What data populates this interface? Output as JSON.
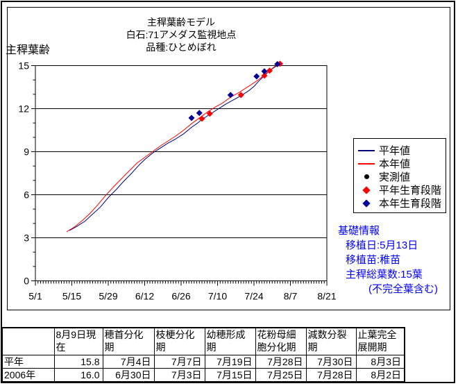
{
  "chart_data": {
    "type": "line",
    "title_lines": [
      "主稈葉齢モデル",
      "白石:71アメダス監視地点",
      "品種:ひとめぼれ"
    ],
    "ylabel": "主稈葉齢",
    "xlabel": "",
    "ylim": [
      0,
      15
    ],
    "y_major_ticks": [
      0,
      3,
      6,
      9,
      12,
      15
    ],
    "y_minor_tick_step": 1,
    "grid": "horizontal-major",
    "x_tick_labels": [
      "5/1",
      "5/15",
      "5/29",
      "6/12",
      "6/26",
      "7/10",
      "7/24",
      "8/7",
      "8/21"
    ],
    "x_range_days": 112,
    "x_major_tick_every_days": 14,
    "x_minor_tick_every_days": 1,
    "x_day_origin": "5/1",
    "legend_position": "right",
    "series": [
      {
        "name": "平年値",
        "color": "#000080",
        "style": "line",
        "points": [
          [
            13,
            3.5
          ],
          [
            16,
            3.8
          ],
          [
            19,
            4.15
          ],
          [
            22,
            4.65
          ],
          [
            25,
            5.15
          ],
          [
            28,
            5.8
          ],
          [
            31,
            6.35
          ],
          [
            34,
            6.95
          ],
          [
            37,
            7.5
          ],
          [
            40,
            8.1
          ],
          [
            42,
            8.45
          ],
          [
            45,
            8.9
          ],
          [
            48,
            9.25
          ],
          [
            51,
            9.6
          ],
          [
            54,
            9.9
          ],
          [
            57,
            10.25
          ],
          [
            60,
            10.7
          ],
          [
            62,
            10.95
          ],
          [
            64,
            11.25
          ],
          [
            67,
            11.6
          ],
          [
            70,
            11.95
          ],
          [
            73,
            12.3
          ],
          [
            76,
            12.6
          ],
          [
            79,
            12.9
          ],
          [
            82,
            13.25
          ],
          [
            84,
            13.55
          ],
          [
            86,
            13.95
          ],
          [
            88,
            14.3
          ],
          [
            90,
            14.65
          ],
          [
            92,
            14.9
          ],
          [
            94,
            15.1
          ],
          [
            95,
            15.17
          ]
        ]
      },
      {
        "name": "本年値",
        "color": "#ff0000",
        "style": "line",
        "points": [
          [
            12,
            3.42
          ],
          [
            15,
            3.75
          ],
          [
            18,
            4.2
          ],
          [
            21,
            4.7
          ],
          [
            24,
            5.3
          ],
          [
            27,
            5.95
          ],
          [
            30,
            6.55
          ],
          [
            33,
            7.1
          ],
          [
            36,
            7.65
          ],
          [
            39,
            8.2
          ],
          [
            42,
            8.6
          ],
          [
            45,
            9.0
          ],
          [
            48,
            9.4
          ],
          [
            51,
            9.75
          ],
          [
            54,
            10.1
          ],
          [
            57,
            10.5
          ],
          [
            60,
            10.95
          ],
          [
            63,
            11.35
          ],
          [
            66,
            11.75
          ],
          [
            69,
            12.1
          ],
          [
            72,
            12.4
          ],
          [
            75,
            12.8
          ],
          [
            78,
            13.1
          ],
          [
            81,
            13.45
          ],
          [
            84,
            13.8
          ],
          [
            86,
            14.05
          ],
          [
            88,
            14.35
          ],
          [
            90,
            14.65
          ],
          [
            91,
            14.8
          ],
          [
            93,
            15.08
          ]
        ]
      },
      {
        "name": "実測値",
        "color": "#000000",
        "style": "dot",
        "points": []
      }
    ],
    "stage_markers": [
      {
        "name": "平年生育段階",
        "color": "#ff0000",
        "shape": "diamond",
        "points": [
          {
            "date": "7月4日",
            "day": 64,
            "value": 11.3
          },
          {
            "date": "7月7日",
            "day": 67,
            "value": 11.65
          },
          {
            "date": "7月19日",
            "day": 79,
            "value": 12.95
          },
          {
            "date": "7月28日",
            "day": 88,
            "value": 14.3
          },
          {
            "date": "7月30日",
            "day": 90,
            "value": 14.65
          },
          {
            "date": "8月3日",
            "day": 94,
            "value": 15.13
          }
        ]
      },
      {
        "name": "本年生育段階",
        "color": "#000099",
        "shape": "diamond",
        "points": [
          {
            "date": "6月30日",
            "day": 60,
            "value": 11.35
          },
          {
            "date": "7月3日",
            "day": 63,
            "value": 11.7
          },
          {
            "date": "7月15日",
            "day": 75,
            "value": 12.95
          },
          {
            "date": "7月25日",
            "day": 85,
            "value": 14.25
          },
          {
            "date": "7月28日",
            "day": 88,
            "value": 14.6
          },
          {
            "date": "8月2日",
            "day": 93,
            "value": 15.1
          }
        ]
      }
    ]
  },
  "legend": {
    "items": [
      {
        "label": "平年値",
        "marker": "line",
        "color": "#000080"
      },
      {
        "label": "本年値",
        "marker": "line",
        "color": "#ff0000"
      },
      {
        "label": "実測値",
        "marker": "dot",
        "color": "#000000"
      },
      {
        "label": "平年生育段階",
        "marker": "diamond",
        "color": "#ff0000"
      },
      {
        "label": "本年生育段階",
        "marker": "diamond",
        "color": "#000099"
      }
    ]
  },
  "info_box": {
    "color": "#0000ff",
    "title": "基礎情報",
    "lines": [
      "移植日:5月13日",
      "移植苗:稚苗",
      "主稈総葉数:15葉",
      "(不完全葉含む)"
    ]
  },
  "table": {
    "headers": [
      "",
      "8月9日現在",
      "穂首分化期",
      "枝梗分化期",
      "幼穂形成期",
      "花粉母細胞分化期",
      "減数分裂期",
      "止葉完全展開期"
    ],
    "rows": [
      {
        "label": "平年",
        "values": [
          "15.8",
          "7月4日",
          "7月7日",
          "7月19日",
          "7月28日",
          "7月30日",
          "8月3日"
        ]
      },
      {
        "label": "2006年",
        "values": [
          "16.0",
          "6月30日",
          "7月3日",
          "7月15日",
          "7月25日",
          "7月28日",
          "8月2日"
        ]
      }
    ]
  }
}
